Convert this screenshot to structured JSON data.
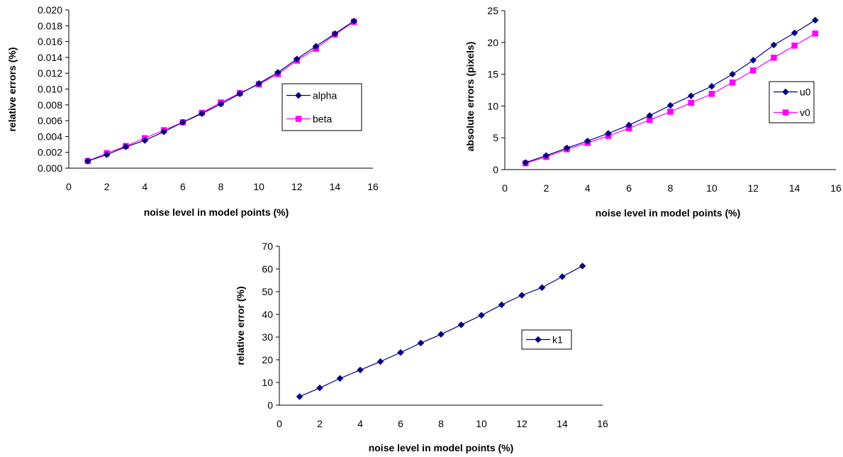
{
  "chart_data": [
    {
      "type": "line",
      "xlabel": "noise level in model points (%)",
      "ylabel": "relative errors (%)",
      "xlim": [
        0,
        16
      ],
      "ylim": [
        0,
        0.02
      ],
      "xticks": [
        "0",
        "2",
        "4",
        "6",
        "8",
        "10",
        "12",
        "14",
        "16"
      ],
      "yticks": [
        "0.000",
        "0.002",
        "0.004",
        "0.006",
        "0.008",
        "0.010",
        "0.012",
        "0.014",
        "0.016",
        "0.018",
        "0.020"
      ],
      "grid": false,
      "legend_position": "right",
      "x": [
        1,
        2,
        3,
        4,
        5,
        6,
        7,
        8,
        9,
        10,
        11,
        12,
        13,
        14,
        15
      ],
      "series": [
        {
          "name": "alpha",
          "color": "#000080",
          "marker": "diamond",
          "values": [
            0.0009,
            0.0017,
            0.0027,
            0.0035,
            0.0046,
            0.0058,
            0.0069,
            0.0081,
            0.0094,
            0.0107,
            0.0121,
            0.0138,
            0.0154,
            0.017,
            0.0186
          ]
        },
        {
          "name": "beta",
          "color": "#ff00ff",
          "marker": "square",
          "values": [
            0.0009,
            0.0019,
            0.0028,
            0.0038,
            0.0048,
            0.0058,
            0.007,
            0.0083,
            0.0095,
            0.0106,
            0.0119,
            0.0136,
            0.0151,
            0.0169,
            0.0185
          ]
        }
      ]
    },
    {
      "type": "line",
      "xlabel": "noise level in model points (%)",
      "ylabel": "absolute errors (pixels)",
      "xlim": [
        0,
        16
      ],
      "ylim": [
        0,
        25
      ],
      "xticks": [
        "0",
        "2",
        "4",
        "6",
        "8",
        "10",
        "12",
        "14",
        "16"
      ],
      "yticks": [
        "0",
        "5",
        "10",
        "15",
        "20",
        "25"
      ],
      "grid": false,
      "legend_position": "right",
      "x": [
        1,
        2,
        3,
        4,
        5,
        6,
        7,
        8,
        9,
        10,
        11,
        12,
        13,
        14,
        15
      ],
      "series": [
        {
          "name": "u0",
          "color": "#000080",
          "marker": "diamond",
          "values": [
            1.1,
            2.2,
            3.4,
            4.5,
            5.7,
            7.0,
            8.5,
            10.1,
            11.6,
            13.1,
            15.0,
            17.2,
            19.6,
            21.5,
            23.5
          ]
        },
        {
          "name": "v0",
          "color": "#ff00ff",
          "marker": "square",
          "values": [
            1.0,
            2.0,
            3.2,
            4.2,
            5.3,
            6.5,
            7.8,
            9.1,
            10.5,
            11.9,
            13.7,
            15.6,
            17.6,
            19.5,
            21.4
          ]
        }
      ]
    },
    {
      "type": "line",
      "xlabel": "noise level in model points (%)",
      "ylabel": "relative error (%)",
      "xlim": [
        0,
        16
      ],
      "ylim": [
        0,
        70
      ],
      "xticks": [
        "0",
        "2",
        "4",
        "6",
        "8",
        "10",
        "12",
        "14",
        "16"
      ],
      "yticks": [
        "0",
        "10",
        "20",
        "30",
        "40",
        "50",
        "60",
        "70"
      ],
      "grid": false,
      "legend_position": "right",
      "x": [
        1,
        2,
        3,
        4,
        5,
        6,
        7,
        8,
        9,
        10,
        11,
        12,
        13,
        14,
        15
      ],
      "series": [
        {
          "name": "k1",
          "color": "#000080",
          "marker": "diamond",
          "values": [
            3.8,
            7.6,
            11.8,
            15.5,
            19.2,
            23.2,
            27.4,
            31.2,
            35.4,
            39.6,
            44.2,
            48.4,
            51.8,
            56.6,
            61.3
          ]
        }
      ]
    }
  ]
}
